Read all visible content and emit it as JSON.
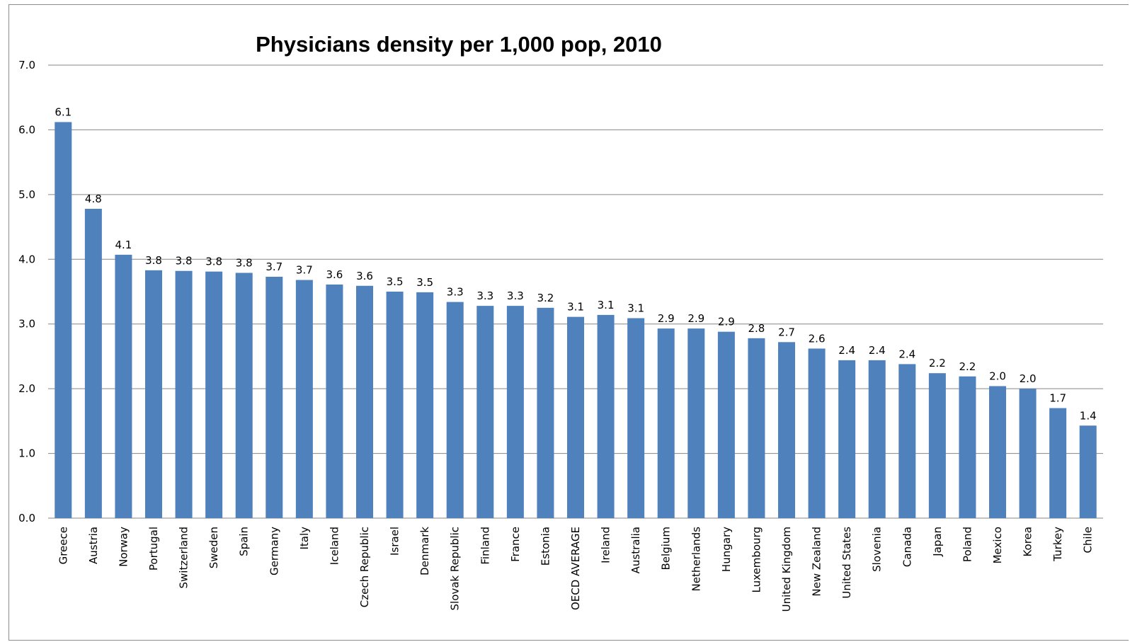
{
  "chart_data": {
    "type": "bar",
    "title": "Physicians density per 1,000 pop, 2010",
    "categories": [
      "Greece",
      "Austria",
      "Norway",
      "Portugal",
      "Switzerland",
      "Sweden",
      "Spain",
      "Germany",
      "Italy",
      "Iceland",
      "Czech Republic",
      "Israel",
      "Denmark",
      "Slovak Republic",
      "Finland",
      "France",
      "Estonia",
      "OECD AVERAGE",
      "Ireland",
      "Australia",
      "Belgium",
      "Netherlands",
      "Hungary",
      "Luxembourg",
      "United Kingdom",
      "New Zealand",
      "United States",
      "Slovenia",
      "Canada",
      "Japan",
      "Poland",
      "Mexico",
      "Korea",
      "Turkey",
      "Chile"
    ],
    "values": [
      6.12,
      4.78,
      4.07,
      3.83,
      3.82,
      3.81,
      3.79,
      3.73,
      3.68,
      3.61,
      3.59,
      3.5,
      3.49,
      3.34,
      3.28,
      3.28,
      3.25,
      3.11,
      3.14,
      3.09,
      2.93,
      2.93,
      2.88,
      2.78,
      2.72,
      2.62,
      2.44,
      2.44,
      2.38,
      2.24,
      2.19,
      2.04,
      2.0,
      1.7,
      1.43
    ],
    "data_labels": [
      "6.1",
      "4.8",
      "4.1",
      "3.8",
      "3.8",
      "3.8",
      "3.8",
      "3.7",
      "3.7",
      "3.6",
      "3.6",
      "3.5",
      "3.5",
      "3.3",
      "3.3",
      "3.3",
      "3.2",
      "3.1",
      "3.1",
      "3.1",
      "2.9",
      "2.9",
      "2.9",
      "2.8",
      "2.7",
      "2.6",
      "2.4",
      "2.4",
      "2.4",
      "2.2",
      "2.2",
      "2.0",
      "2.0",
      "1.7",
      "1.4"
    ],
    "y_ticks": [
      "0.0",
      "1.0",
      "2.0",
      "3.0",
      "4.0",
      "5.0",
      "6.0",
      "7.0"
    ],
    "ylim": [
      0,
      7
    ],
    "grid": true,
    "legend": "none",
    "bar_color": "#4F81BD",
    "grid_color": "#868686"
  }
}
